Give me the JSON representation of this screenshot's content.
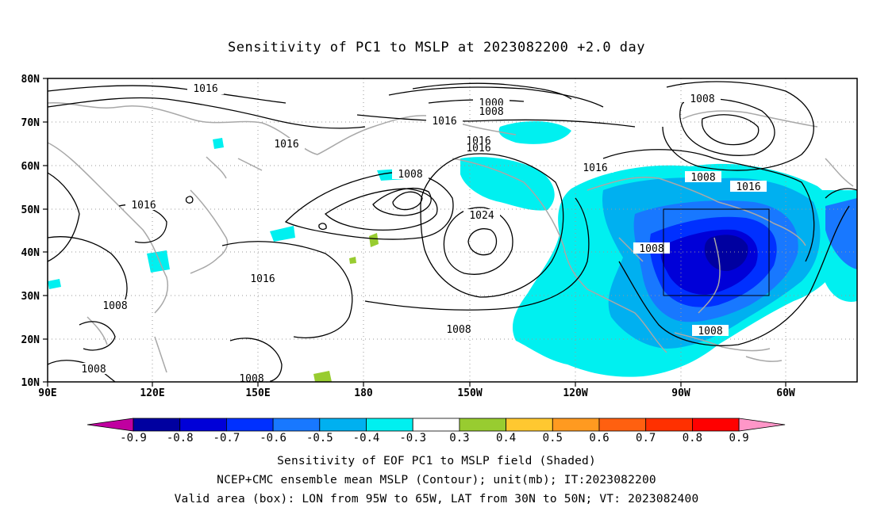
{
  "title": "Sensitivity of PC1 to MSLP at 2023082200 +2.0 day",
  "axes": {
    "lat_labels": [
      "80N",
      "70N",
      "60N",
      "50N",
      "40N",
      "30N",
      "20N",
      "10N"
    ],
    "lon_labels": [
      "90E",
      "120E",
      "150E",
      "180",
      "150W",
      "120W",
      "90W",
      "60W"
    ]
  },
  "contour_labels": [
    "1016",
    "1000",
    "1008",
    "1016",
    "1008",
    "1016",
    "1016",
    "1016",
    "1008",
    "1016",
    "1016",
    "1024",
    "1008",
    "1016",
    "1008",
    "1016",
    "1008",
    "1008",
    "1008"
  ],
  "valid_box": {
    "lon_from": "95W",
    "lon_to": "65W",
    "lat_from": "30N",
    "lat_to": "50N"
  },
  "colorbar": {
    "labels": [
      "-0.9",
      "-0.8",
      "-0.7",
      "-0.6",
      "-0.5",
      "-0.4",
      "-0.3",
      "0.3",
      "0.4",
      "0.5",
      "0.6",
      "0.7",
      "0.8",
      "0.9"
    ],
    "colors": [
      "#c000a0",
      "#0000a0",
      "#0000d8",
      "#0030ff",
      "#1878ff",
      "#00b0f0",
      "#00f0f0",
      "#ffffff",
      "#98cc30",
      "#ffc830",
      "#ff9a20",
      "#ff6010",
      "#ff3000",
      "#ff0000",
      "#ff96c8"
    ]
  },
  "footer": {
    "line1": "Sensitivity of EOF PC1 to MSLP field (Shaded)",
    "line2": "NCEP+CMC ensemble mean MSLP (Contour); unit(mb); IT:2023082200",
    "line3": "Valid area (box): LON from 95W to 65W, LAT from 30N to 50N; VT: 2023082400"
  }
}
